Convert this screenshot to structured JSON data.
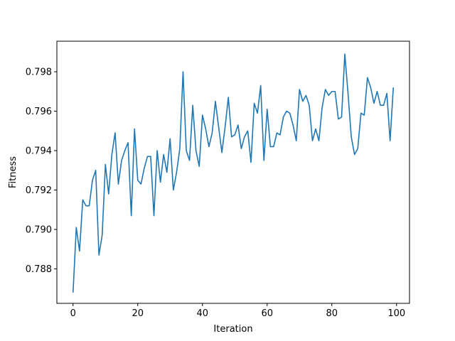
{
  "chart_data": {
    "type": "line",
    "title": "",
    "xlabel": "Iteration",
    "ylabel": "Fitness",
    "xlim": [
      -5,
      104
    ],
    "ylim": [
      0.78625,
      0.79955
    ],
    "xticks": [
      0,
      20,
      40,
      60,
      80,
      100
    ],
    "yticks": [
      0.788,
      0.79,
      0.792,
      0.794,
      0.796,
      0.798
    ],
    "xtick_labels": [
      "0",
      "20",
      "40",
      "60",
      "80",
      "100"
    ],
    "ytick_labels": [
      "0.788",
      "0.790",
      "0.792",
      "0.794",
      "0.796",
      "0.798"
    ],
    "grid": false,
    "legend": null,
    "series": [
      {
        "color": "#1f77b4",
        "x": [
          0,
          1,
          2,
          3,
          4,
          5,
          6,
          7,
          8,
          9,
          10,
          11,
          12,
          13,
          14,
          15,
          16,
          17,
          18,
          19,
          20,
          21,
          22,
          23,
          24,
          25,
          26,
          27,
          28,
          29,
          30,
          31,
          32,
          33,
          34,
          35,
          36,
          37,
          38,
          39,
          40,
          41,
          42,
          43,
          44,
          45,
          46,
          47,
          48,
          49,
          50,
          51,
          52,
          53,
          54,
          55,
          56,
          57,
          58,
          59,
          60,
          61,
          62,
          63,
          64,
          65,
          66,
          67,
          68,
          69,
          70,
          71,
          72,
          73,
          74,
          75,
          76,
          77,
          78,
          79,
          80,
          81,
          82,
          83,
          84,
          85,
          86,
          87,
          88,
          89,
          90,
          91,
          92,
          93,
          94,
          95,
          96,
          97,
          98,
          99
        ],
        "y": [
          0.7868,
          0.7901,
          0.7889,
          0.7915,
          0.7912,
          0.7912,
          0.7925,
          0.793,
          0.7887,
          0.7897,
          0.7933,
          0.7918,
          0.7938,
          0.7949,
          0.7923,
          0.7935,
          0.794,
          0.7944,
          0.7907,
          0.7951,
          0.7925,
          0.7923,
          0.7931,
          0.7937,
          0.7937,
          0.7907,
          0.794,
          0.7924,
          0.7938,
          0.7929,
          0.7946,
          0.792,
          0.7929,
          0.7941,
          0.798,
          0.794,
          0.7935,
          0.7963,
          0.794,
          0.7932,
          0.7958,
          0.7951,
          0.7942,
          0.7949,
          0.7965,
          0.7952,
          0.7939,
          0.7952,
          0.7967,
          0.7947,
          0.7948,
          0.7953,
          0.7941,
          0.7947,
          0.795,
          0.7934,
          0.7964,
          0.7959,
          0.7973,
          0.7935,
          0.7961,
          0.7942,
          0.7942,
          0.7949,
          0.7948,
          0.7957,
          0.796,
          0.7959,
          0.7953,
          0.7945,
          0.7971,
          0.7965,
          0.7968,
          0.7963,
          0.7945,
          0.7951,
          0.7945,
          0.7962,
          0.7971,
          0.7968,
          0.797,
          0.797,
          0.7956,
          0.7957,
          0.7989,
          0.7969,
          0.7947,
          0.7938,
          0.7941,
          0.7959,
          0.7958,
          0.7977,
          0.7972,
          0.7964,
          0.797,
          0.7963,
          0.7963,
          0.7969,
          0.7945,
          0.7972
        ]
      }
    ]
  }
}
